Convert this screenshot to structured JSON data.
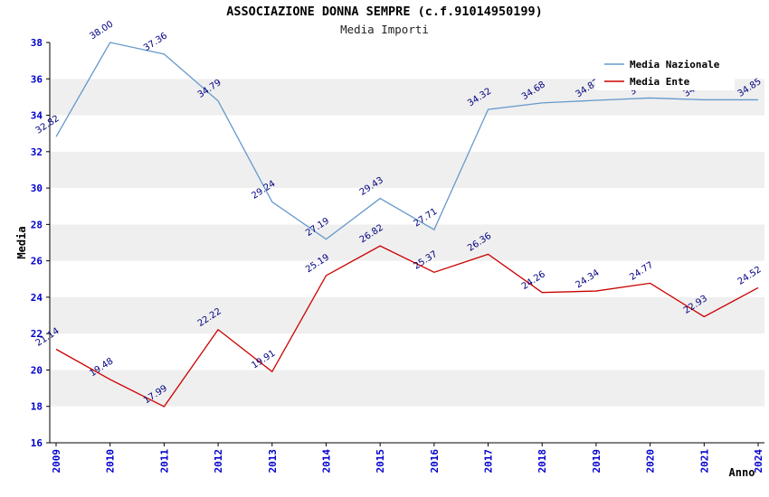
{
  "chart_data": {
    "type": "line",
    "title": "ASSOCIAZIONE DONNA SEMPRE (c.f.91014950199)",
    "subtitle": "Media Importi",
    "xlabel": "Anno",
    "ylabel": "Media",
    "ylim": [
      16,
      38
    ],
    "yticks": [
      16,
      18,
      20,
      22,
      24,
      26,
      28,
      30,
      32,
      34,
      36,
      38
    ],
    "categories": [
      "2009",
      "2010",
      "2011",
      "2012",
      "2013",
      "2014",
      "2015",
      "2016",
      "2017",
      "2018",
      "2019",
      "2020",
      "2021",
      "2024"
    ],
    "series": [
      {
        "name": "Media Nazionale",
        "color": "#6699cc",
        "values": [
          32.82,
          38.0,
          37.36,
          34.79,
          29.24,
          27.19,
          29.43,
          27.71,
          34.32,
          34.68,
          34.82,
          34.95,
          34.85,
          34.85
        ]
      },
      {
        "name": "Media Ente",
        "color": "#cc0000",
        "values": [
          21.14,
          19.48,
          17.99,
          22.22,
          19.91,
          25.19,
          26.82,
          25.37,
          26.36,
          24.26,
          24.34,
          24.77,
          22.93,
          24.52
        ]
      }
    ],
    "legend_position": "top-right",
    "grid": false,
    "band_colors": [
      "#ffffff",
      "#efefef"
    ],
    "point_label_color": "#000080",
    "tick_color": "#0000cc",
    "axis_color": "#000000"
  }
}
